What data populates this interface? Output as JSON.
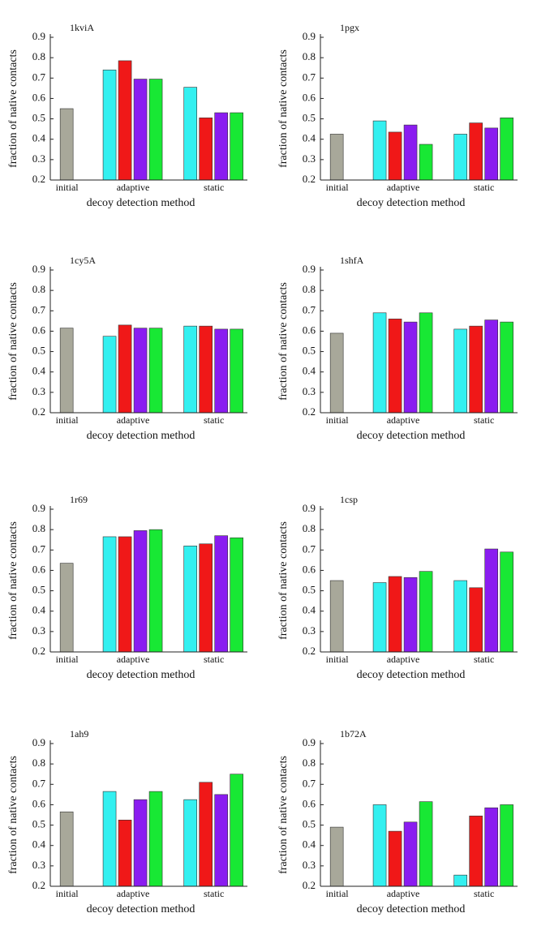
{
  "chart_data": [
    {
      "type": "bar",
      "title": "1kviA",
      "categories": [
        "initial",
        "adaptive",
        "static"
      ],
      "series": [
        {
          "color": "#a8a89a",
          "values": [
            0.55,
            null,
            null
          ]
        },
        {
          "color": "#33f0f0",
          "values": [
            null,
            0.74,
            0.655
          ]
        },
        {
          "color": "#f01818",
          "values": [
            null,
            0.785,
            0.505
          ]
        },
        {
          "color": "#8a1cf0",
          "values": [
            null,
            0.695,
            0.53
          ]
        },
        {
          "color": "#18e834",
          "values": [
            null,
            0.695,
            0.53
          ]
        }
      ],
      "ylim": [
        0.2,
        0.9
      ],
      "yticks": [
        0.2,
        0.3,
        0.4,
        0.5,
        0.6,
        0.7,
        0.8,
        0.9
      ],
      "xlabel": "decoy detection method",
      "ylabel": "fraction of native contacts"
    },
    {
      "type": "bar",
      "title": "1pgx",
      "categories": [
        "initial",
        "adaptive",
        "static"
      ],
      "series": [
        {
          "color": "#a8a89a",
          "values": [
            0.425,
            null,
            null
          ]
        },
        {
          "color": "#33f0f0",
          "values": [
            null,
            0.49,
            0.425
          ]
        },
        {
          "color": "#f01818",
          "values": [
            null,
            0.435,
            0.48
          ]
        },
        {
          "color": "#8a1cf0",
          "values": [
            null,
            0.47,
            0.455
          ]
        },
        {
          "color": "#18e834",
          "values": [
            null,
            0.375,
            0.505
          ]
        }
      ],
      "ylim": [
        0.2,
        0.9
      ],
      "yticks": [
        0.2,
        0.3,
        0.4,
        0.5,
        0.6,
        0.7,
        0.8,
        0.9
      ],
      "xlabel": "decoy detection method",
      "ylabel": "fraction of native contacts"
    },
    {
      "type": "bar",
      "title": "1cy5A",
      "categories": [
        "initial",
        "adaptive",
        "static"
      ],
      "series": [
        {
          "color": "#a8a89a",
          "values": [
            0.615,
            null,
            null
          ]
        },
        {
          "color": "#33f0f0",
          "values": [
            null,
            0.575,
            0.625
          ]
        },
        {
          "color": "#f01818",
          "values": [
            null,
            0.63,
            0.625
          ]
        },
        {
          "color": "#8a1cf0",
          "values": [
            null,
            0.615,
            0.61
          ]
        },
        {
          "color": "#18e834",
          "values": [
            null,
            0.615,
            0.61
          ]
        }
      ],
      "ylim": [
        0.2,
        0.9
      ],
      "yticks": [
        0.2,
        0.3,
        0.4,
        0.5,
        0.6,
        0.7,
        0.8,
        0.9
      ],
      "xlabel": "decoy detection method",
      "ylabel": "fraction of native contacts"
    },
    {
      "type": "bar",
      "title": "1shfA",
      "categories": [
        "initial",
        "adaptive",
        "static"
      ],
      "series": [
        {
          "color": "#a8a89a",
          "values": [
            0.59,
            null,
            null
          ]
        },
        {
          "color": "#33f0f0",
          "values": [
            null,
            0.69,
            0.61
          ]
        },
        {
          "color": "#f01818",
          "values": [
            null,
            0.66,
            0.625
          ]
        },
        {
          "color": "#8a1cf0",
          "values": [
            null,
            0.645,
            0.655
          ]
        },
        {
          "color": "#18e834",
          "values": [
            null,
            0.69,
            0.645
          ]
        }
      ],
      "ylim": [
        0.2,
        0.9
      ],
      "yticks": [
        0.2,
        0.3,
        0.4,
        0.5,
        0.6,
        0.7,
        0.8,
        0.9
      ],
      "xlabel": "decoy detection method",
      "ylabel": "fraction of native contacts"
    },
    {
      "type": "bar",
      "title": "1r69",
      "categories": [
        "initial",
        "adaptive",
        "static"
      ],
      "series": [
        {
          "color": "#a8a89a",
          "values": [
            0.635,
            null,
            null
          ]
        },
        {
          "color": "#33f0f0",
          "values": [
            null,
            0.765,
            0.72
          ]
        },
        {
          "color": "#f01818",
          "values": [
            null,
            0.765,
            0.73
          ]
        },
        {
          "color": "#8a1cf0",
          "values": [
            null,
            0.795,
            0.77
          ]
        },
        {
          "color": "#18e834",
          "values": [
            null,
            0.8,
            0.76
          ]
        }
      ],
      "ylim": [
        0.2,
        0.9
      ],
      "yticks": [
        0.2,
        0.3,
        0.4,
        0.5,
        0.6,
        0.7,
        0.8,
        0.9
      ],
      "xlabel": "decoy detection method",
      "ylabel": "fraction of native contacts"
    },
    {
      "type": "bar",
      "title": "1csp",
      "categories": [
        "initial",
        "adaptive",
        "static"
      ],
      "series": [
        {
          "color": "#a8a89a",
          "values": [
            0.55,
            null,
            null
          ]
        },
        {
          "color": "#33f0f0",
          "values": [
            null,
            0.54,
            0.55
          ]
        },
        {
          "color": "#f01818",
          "values": [
            null,
            0.57,
            0.515
          ]
        },
        {
          "color": "#8a1cf0",
          "values": [
            null,
            0.565,
            0.705
          ]
        },
        {
          "color": "#18e834",
          "values": [
            null,
            0.595,
            0.69
          ]
        }
      ],
      "ylim": [
        0.2,
        0.9
      ],
      "yticks": [
        0.2,
        0.3,
        0.4,
        0.5,
        0.6,
        0.7,
        0.8,
        0.9
      ],
      "xlabel": "decoy detection method",
      "ylabel": "fraction of native contacts"
    },
    {
      "type": "bar",
      "title": "1ah9",
      "categories": [
        "initial",
        "adaptive",
        "static"
      ],
      "series": [
        {
          "color": "#a8a89a",
          "values": [
            0.565,
            null,
            null
          ]
        },
        {
          "color": "#33f0f0",
          "values": [
            null,
            0.665,
            0.625
          ]
        },
        {
          "color": "#f01818",
          "values": [
            null,
            0.525,
            0.71
          ]
        },
        {
          "color": "#8a1cf0",
          "values": [
            null,
            0.625,
            0.65
          ]
        },
        {
          "color": "#18e834",
          "values": [
            null,
            0.665,
            0.75
          ]
        }
      ],
      "ylim": [
        0.2,
        0.9
      ],
      "yticks": [
        0.2,
        0.3,
        0.4,
        0.5,
        0.6,
        0.7,
        0.8,
        0.9
      ],
      "xlabel": "decoy detection method",
      "ylabel": "fraction of native contacts"
    },
    {
      "type": "bar",
      "title": "1b72A",
      "categories": [
        "initial",
        "adaptive",
        "static"
      ],
      "series": [
        {
          "color": "#a8a89a",
          "values": [
            0.49,
            null,
            null
          ]
        },
        {
          "color": "#33f0f0",
          "values": [
            null,
            0.6,
            0.255
          ]
        },
        {
          "color": "#f01818",
          "values": [
            null,
            0.47,
            0.545
          ]
        },
        {
          "color": "#8a1cf0",
          "values": [
            null,
            0.515,
            0.585
          ]
        },
        {
          "color": "#18e834",
          "values": [
            null,
            0.615,
            0.6
          ]
        }
      ],
      "ylim": [
        0.2,
        0.9
      ],
      "yticks": [
        0.2,
        0.3,
        0.4,
        0.5,
        0.6,
        0.7,
        0.8,
        0.9
      ],
      "xlabel": "decoy detection method",
      "ylabel": "fraction of native contacts"
    }
  ]
}
